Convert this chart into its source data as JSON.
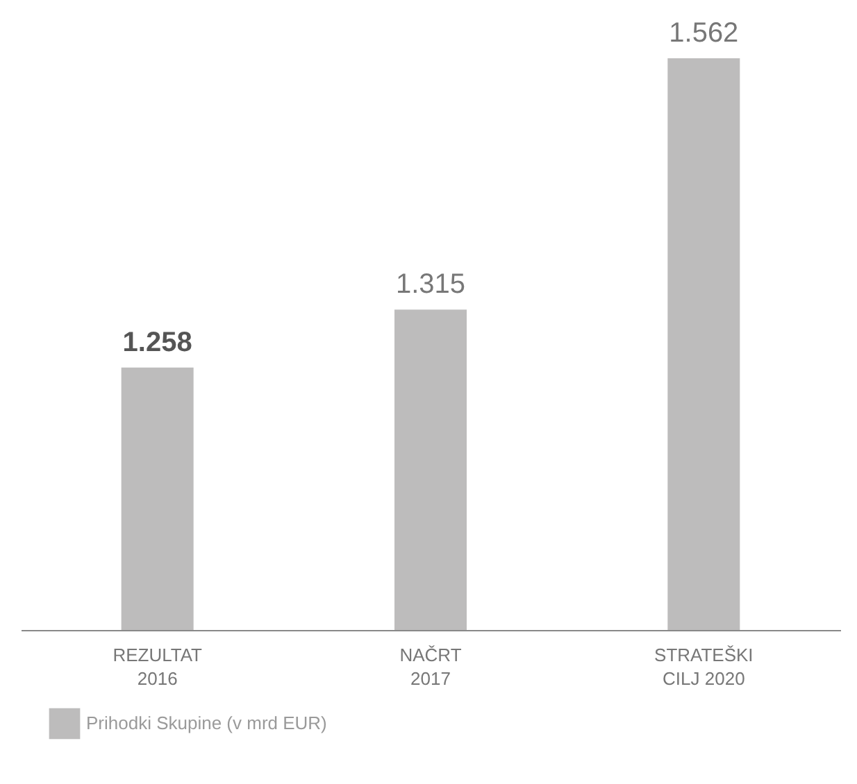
{
  "chart_data": {
    "type": "bar",
    "categories": [
      "REZULTAT\n2016",
      "NAČRT\n2017",
      "STRATEŠKI\nCILJ 2020"
    ],
    "series": [
      {
        "name": "Prihodki Skupine (v mrd EUR)",
        "color": "#bdbcbc",
        "values": [
          1.258,
          1.315,
          1.562
        ]
      }
    ],
    "ylim": [
      1.0,
      1.562
    ],
    "data_labels": true,
    "legend": "bottom left",
    "tick_labels": "x",
    "grid": false
  }
}
